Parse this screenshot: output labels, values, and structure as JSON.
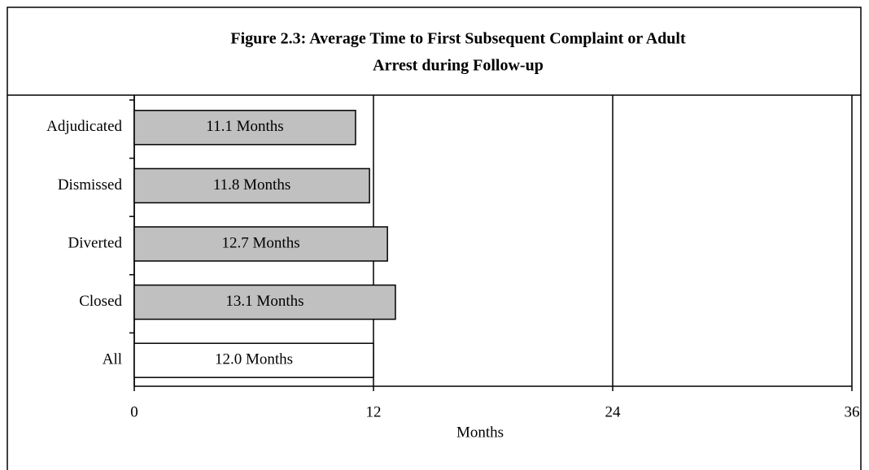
{
  "chart_data": {
    "type": "barh",
    "title": [
      "Figure 2.3:  Average Time to First Subsequent Complaint or Adult",
      "Arrest during Follow-up"
    ],
    "categories": [
      "Adjudicated",
      "Dismissed",
      "Diverted",
      "Closed",
      "All"
    ],
    "values": [
      11.1,
      11.8,
      12.7,
      13.1,
      12.0
    ],
    "value_labels": [
      "11.1 Months",
      "11.8 Months",
      "12.7 Months",
      "13.1 Months",
      "12.0 Months"
    ],
    "colors": [
      "#c0c0c0",
      "#c0c0c0",
      "#c0c0c0",
      "#c0c0c0",
      "#ffffff"
    ],
    "xlabel": "Months",
    "xlim": [
      0,
      36
    ],
    "xticks": [
      0,
      12,
      24,
      36
    ],
    "grid": true
  }
}
